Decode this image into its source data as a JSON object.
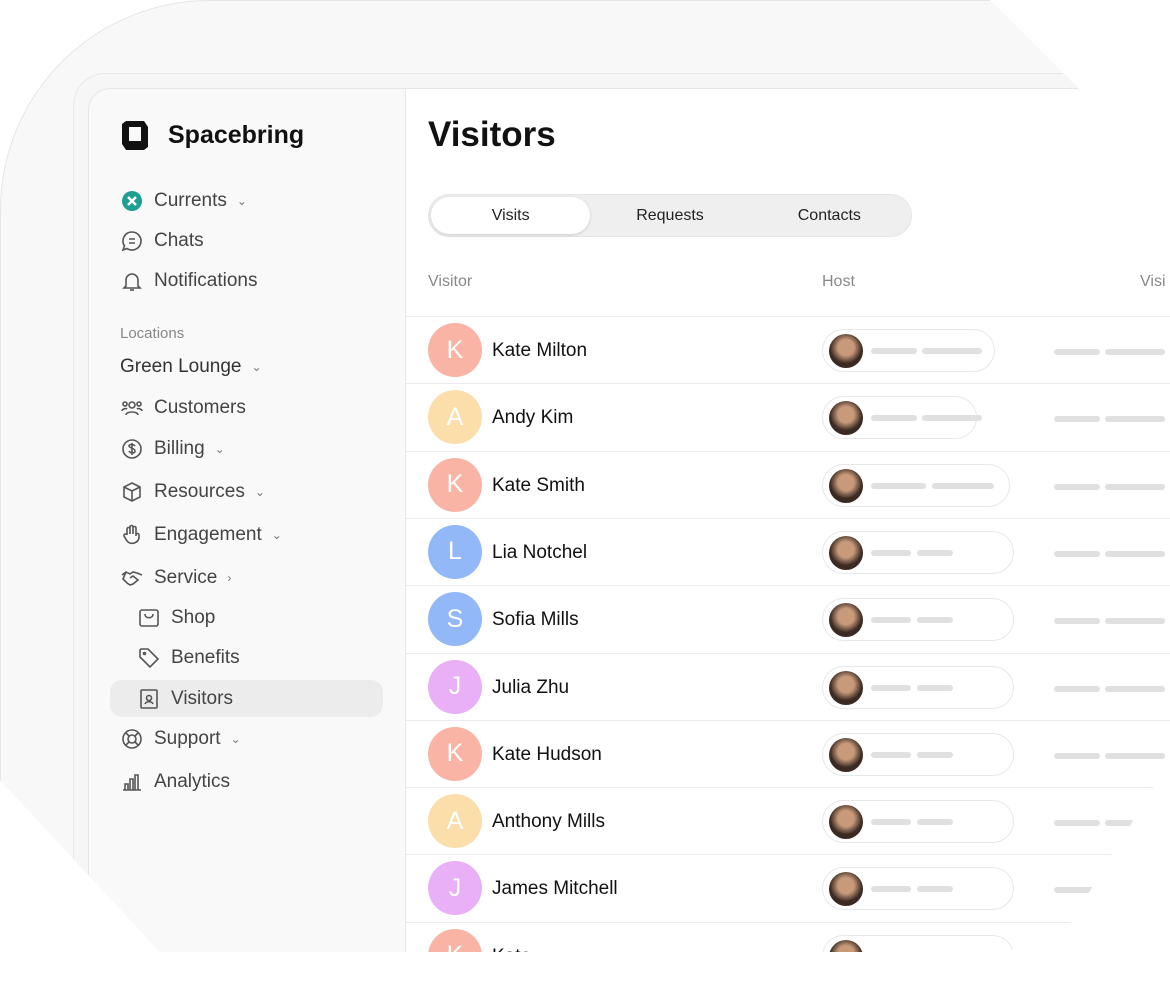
{
  "brand": {
    "name": "Spacebring"
  },
  "sidebar": {
    "top": [
      {
        "label": "Currents",
        "icon": "currents-logo-icon",
        "chevron": "down"
      },
      {
        "label": "Chats",
        "icon": "chat-icon"
      },
      {
        "label": "Notifications",
        "icon": "bell-icon"
      }
    ],
    "section_label": "Locations",
    "location": "Green Lounge",
    "items": [
      {
        "label": "Customers",
        "icon": "users-icon",
        "chevron": ""
      },
      {
        "label": "Billing",
        "icon": "dollar-icon",
        "chevron": "down"
      },
      {
        "label": "Resources",
        "icon": "cube-icon",
        "chevron": "down"
      },
      {
        "label": "Engagement",
        "icon": "hand-wave-icon",
        "chevron": "down"
      },
      {
        "label": "Service",
        "icon": "handshake-icon",
        "chevron": "right"
      }
    ],
    "sub": [
      {
        "label": "Shop",
        "icon": "shop-icon"
      },
      {
        "label": "Benefits",
        "icon": "tag-icon"
      },
      {
        "label": "Visitors",
        "icon": "badge-icon",
        "active": true
      }
    ],
    "bottom": [
      {
        "label": "Support",
        "icon": "lifebuoy-icon",
        "chevron": "down"
      },
      {
        "label": "Analytics",
        "icon": "bar-chart-icon"
      }
    ]
  },
  "main": {
    "title": "Visitors",
    "tabs": [
      {
        "label": "Visits",
        "active": true
      },
      {
        "label": "Requests"
      },
      {
        "label": "Contacts"
      }
    ],
    "columns": [
      "Visitor",
      "Host",
      "Visi"
    ],
    "rows": [
      {
        "initial": "K",
        "name": "Kate Milton",
        "color": "#f9b4a6"
      },
      {
        "initial": "A",
        "name": "Andy Kim",
        "color": "#fbdeaa"
      },
      {
        "initial": "K",
        "name": "Kate Smith",
        "color": "#f9b4a6"
      },
      {
        "initial": "L",
        "name": "Lia Notchel",
        "color": "#92b8f7"
      },
      {
        "initial": "S",
        "name": "Sofia Mills",
        "color": "#92b8f7"
      },
      {
        "initial": "J",
        "name": "Julia Zhu",
        "color": "#eab0f7"
      },
      {
        "initial": "K",
        "name": "Kate Hudson",
        "color": "#f9b4a6"
      },
      {
        "initial": "A",
        "name": "Anthony Mills",
        "color": "#fbdeaa"
      },
      {
        "initial": "J",
        "name": "James Mitchell",
        "color": "#eab0f7"
      },
      {
        "initial": "K",
        "name": "Kate",
        "color": "#f9b4a6"
      }
    ]
  }
}
